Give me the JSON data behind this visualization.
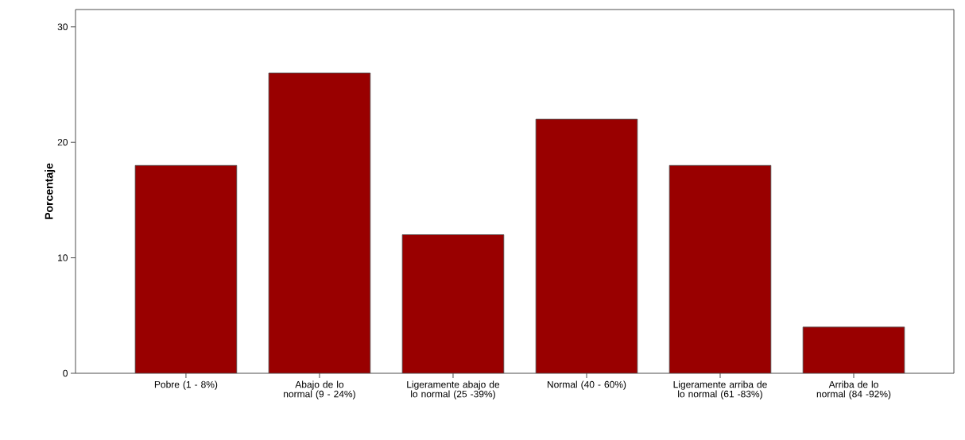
{
  "chart_data": {
    "type": "bar",
    "ylabel": "Porcentaje",
    "categories": [
      "Pobre (1 - 8%)",
      "Abajo de lo normal (9 - 24%)",
      "Ligeramente abajo de lo normal (25 -39%)",
      "Normal (40 - 60%)",
      "Ligeramente arriba de lo normal (61 -83%)",
      "Arriba de lo normal (84 -92%)"
    ],
    "values": [
      18,
      26,
      12,
      22,
      18,
      4
    ],
    "color": "#990000",
    "ylim": [
      0,
      31.5
    ],
    "yticks": [
      0,
      10,
      20,
      30
    ]
  }
}
